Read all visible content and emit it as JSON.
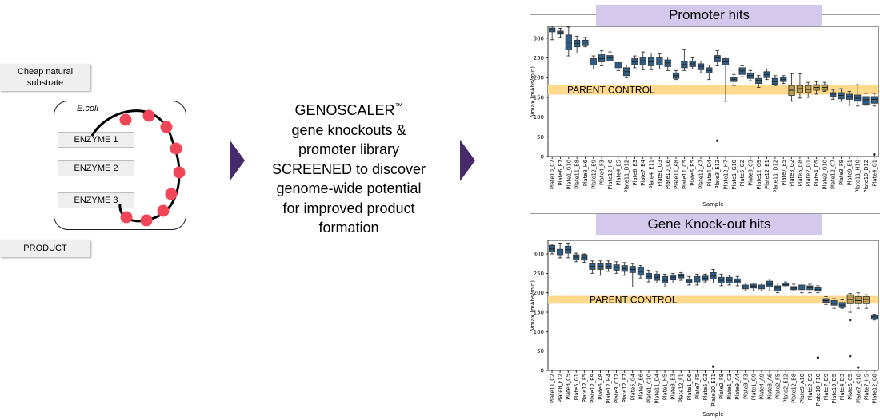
{
  "left": {
    "substrate_label": "Cheap natural\nsubstrate",
    "cell_label": "E.coli",
    "enzymes": [
      "ENZYME 1",
      "ENZYME 2",
      "ENZYME 3"
    ],
    "product_label": "PRODUCT"
  },
  "center": {
    "brand": "GENOSCALER",
    "trademark": "™",
    "text": "gene knockouts & promoter library SCREENED to discover genome-wide potential for improved product formation"
  },
  "colors": {
    "arrow": "#462a6c",
    "dot": "#f04657",
    "box": "#2f5f88",
    "band": "#ffd98c",
    "title_bg": "#d4c8ec"
  },
  "chart_data": [
    {
      "type": "box",
      "title": "Promoter hits",
      "xlabel": "Sample",
      "ylabel": "Vmax (mAbs/min)",
      "ylim": [
        0,
        330
      ],
      "yticks": [
        0,
        50,
        100,
        150,
        200,
        250,
        300
      ],
      "band_label": "PARENT CONTROL",
      "band_range": [
        157,
        182
      ],
      "categories": [
        "Plate10_C7",
        "Plate6_E7",
        "Plate1_G10",
        "Plate11_B8",
        "Plate9_H6",
        "Plate12_B9",
        "Plate4_F3",
        "Plate12_H6",
        "Plate4_E5",
        "Plate11_D12",
        "Plate6_E3",
        "Plate7_B4",
        "Plate4_E11",
        "Plate1_G3",
        "Plate10_C6",
        "Plate11_A8",
        "Plate11_C5",
        "Plate6_B5",
        "Plate12_A7",
        "Plate4_D4",
        "Plate3_E12",
        "Plate12_H7",
        "Plate1_G10",
        "Plate5_G2",
        "Plate3_C3",
        "Plate12_G9",
        "Plate12_B1",
        "Plate11_D12",
        "Plate7_E5",
        "Plate3_G2",
        "Plate5_G8",
        "Plate2_G1",
        "Plate4_D5",
        "Plate2_G10",
        "Plate12_C7",
        "Plate3_F9",
        "Plate9_E1",
        "Plate11_H10",
        "Plate10_D12",
        "Plate4_G1"
      ],
      "medians": [
        322,
        314,
        290,
        287,
        290,
        242,
        248,
        250,
        232,
        215,
        240,
        243,
        240,
        242,
        237,
        205,
        233,
        235,
        228,
        218,
        250,
        240,
        195,
        217,
        205,
        193,
        208,
        190,
        195,
        168,
        172,
        170,
        175,
        175,
        158,
        155,
        152,
        148,
        144,
        145
      ],
      "q1": [
        316,
        310,
        270,
        278,
        283,
        232,
        240,
        242,
        225,
        205,
        233,
        232,
        230,
        232,
        228,
        198,
        225,
        228,
        220,
        212,
        240,
        232,
        190,
        208,
        198,
        185,
        200,
        183,
        190,
        155,
        162,
        162,
        168,
        168,
        152,
        146,
        145,
        140,
        132,
        135
      ],
      "q3": [
        326,
        318,
        308,
        295,
        295,
        248,
        258,
        256,
        238,
        225,
        248,
        250,
        250,
        250,
        245,
        212,
        242,
        242,
        235,
        225,
        256,
        248,
        200,
        225,
        212,
        198,
        215,
        198,
        200,
        180,
        180,
        180,
        182,
        182,
        162,
        162,
        158,
        156,
        152,
        152
      ],
      "whisker_low": [
        296,
        302,
        255,
        262,
        278,
        222,
        230,
        232,
        218,
        200,
        225,
        220,
        220,
        222,
        218,
        195,
        218,
        222,
        212,
        195,
        230,
        140,
        180,
        202,
        192,
        175,
        195,
        180,
        185,
        140,
        148,
        150,
        158,
        165,
        145,
        140,
        130,
        128,
        130,
        128
      ],
      "whisker_high": [
        330,
        325,
        328,
        305,
        302,
        255,
        268,
        265,
        242,
        232,
        255,
        265,
        262,
        260,
        252,
        218,
        272,
        250,
        242,
        232,
        268,
        252,
        208,
        230,
        218,
        205,
        222,
        205,
        205,
        210,
        210,
        188,
        190,
        188,
        170,
        172,
        165,
        182,
        160,
        160
      ],
      "highlighted": [
        false,
        false,
        false,
        false,
        false,
        false,
        false,
        false,
        false,
        false,
        false,
        false,
        false,
        false,
        false,
        false,
        false,
        false,
        false,
        false,
        false,
        false,
        false,
        false,
        false,
        false,
        false,
        false,
        false,
        true,
        true,
        true,
        true,
        true,
        false,
        false,
        false,
        false,
        false,
        false
      ],
      "outliers": [
        [
          20,
          40
        ],
        [
          39,
          5
        ]
      ]
    },
    {
      "type": "box",
      "title": "Gene Knock-out hits",
      "xlabel": "Sample",
      "ylabel": "Vmax (mAbs/min)",
      "ylim": [
        0,
        335
      ],
      "yticks": [
        0,
        50,
        100,
        150,
        200,
        250,
        300
      ],
      "band_label": "PARENT CONTROL",
      "band_range": [
        172,
        192
      ],
      "categories": [
        "Plate11_C2",
        "Plate8_F12",
        "Plate3_C5",
        "Plate5_G1",
        "Plate12_F5",
        "Plate12_B9",
        "Plate5_A8",
        "Plate12_H4",
        "Plate3_C12",
        "Plate12_F7",
        "Plate5_G4",
        "Plate7_E6",
        "Plate1_C10",
        "Plate11_D4",
        "Plate1_H5",
        "Plate3_B3",
        "Plate12_F1",
        "Plate1_D6",
        "Plate7_F5",
        "Plate5_G3",
        "Plate10_E11",
        "Plate2_F8",
        "Plate1_C3",
        "Plate9_A4",
        "Plate3_F3",
        "Plate1_G9",
        "Plate4_A9",
        "Plate8_A6",
        "Plate2_F5",
        "Plate2_E12",
        "Plate12_B8",
        "Plate9_A10",
        "Plate2_D9",
        "Plate10_F10",
        "Plate7_D9",
        "Plate10_D5",
        "Plate4_D3",
        "Plate5_C5",
        "Plate7_C10",
        "Plate7_H5",
        "Plate12_G8"
      ],
      "medians": [
        313,
        305,
        311,
        292,
        290,
        268,
        268,
        268,
        265,
        262,
        260,
        255,
        242,
        240,
        232,
        240,
        243,
        230,
        235,
        238,
        243,
        232,
        232,
        230,
        215,
        217,
        215,
        222,
        212,
        221,
        212,
        215,
        213,
        208,
        180,
        173,
        168,
        183,
        180,
        183,
        138
      ],
      "q1": [
        305,
        298,
        302,
        285,
        284,
        260,
        260,
        262,
        258,
        255,
        252,
        245,
        236,
        232,
        225,
        233,
        238,
        225,
        228,
        232,
        235,
        225,
        225,
        225,
        210,
        212,
        210,
        215,
        205,
        218,
        208,
        208,
        208,
        204,
        175,
        168,
        162,
        172,
        172,
        172,
        132
      ],
      "q3": [
        322,
        312,
        320,
        298,
        298,
        275,
        275,
        275,
        272,
        270,
        268,
        265,
        250,
        248,
        242,
        245,
        248,
        235,
        242,
        243,
        252,
        240,
        240,
        236,
        220,
        222,
        220,
        230,
        218,
        225,
        216,
        220,
        218,
        213,
        185,
        180,
        175,
        195,
        190,
        190,
        142
      ],
      "whisker_low": [
        300,
        290,
        290,
        280,
        278,
        250,
        245,
        255,
        250,
        245,
        215,
        238,
        228,
        225,
        215,
        225,
        232,
        220,
        220,
        228,
        225,
        218,
        220,
        218,
        205,
        205,
        205,
        205,
        200,
        215,
        205,
        200,
        200,
        200,
        170,
        160,
        160,
        150,
        160,
        160,
        130
      ],
      "whisker_high": [
        325,
        328,
        328,
        302,
        300,
        282,
        282,
        282,
        280,
        278,
        275,
        270,
        258,
        255,
        248,
        250,
        252,
        242,
        248,
        248,
        260,
        248,
        245,
        242,
        225,
        225,
        225,
        235,
        225,
        228,
        222,
        225,
        222,
        218,
        190,
        185,
        182,
        198,
        200,
        195,
        145
      ],
      "highlighted": [
        false,
        false,
        false,
        false,
        false,
        false,
        false,
        false,
        false,
        false,
        false,
        false,
        false,
        false,
        false,
        false,
        false,
        false,
        false,
        false,
        false,
        false,
        false,
        false,
        false,
        false,
        false,
        false,
        false,
        false,
        false,
        false,
        false,
        false,
        false,
        false,
        false,
        true,
        true,
        true,
        false
      ],
      "outliers": [
        [
          20,
          10
        ],
        [
          33,
          33
        ],
        [
          37,
          37
        ],
        [
          37,
          130
        ],
        [
          38,
          8
        ]
      ]
    }
  ]
}
